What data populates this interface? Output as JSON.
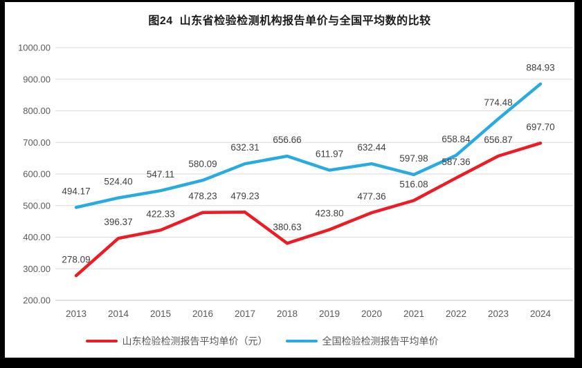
{
  "page": {
    "frame_color": "#000000",
    "background": "#ffffff"
  },
  "chart_data": {
    "type": "line",
    "title": "图24  山东省检验检测机构报告单价与全国平均数的比较",
    "categories": [
      "2013",
      "2014",
      "2015",
      "2016",
      "2017",
      "2018",
      "2019",
      "2020",
      "2021",
      "2022",
      "2023",
      "2024"
    ],
    "series": [
      {
        "name": "山东检验检测报告平均单价（元）",
        "color": "#ed1c24",
        "values": [
          278.09,
          396.37,
          422.33,
          478.23,
          479.23,
          380.63,
          423.8,
          477.36,
          516.08,
          587.36,
          656.87,
          697.7
        ]
      },
      {
        "name": "全国检验检测报告平均单价",
        "color": "#29abe2",
        "values": [
          494.17,
          524.4,
          547.11,
          580.09,
          632.31,
          656.66,
          611.97,
          632.44,
          597.98,
          658.84,
          774.48,
          884.93
        ]
      }
    ],
    "ylim": [
      200,
      1000
    ],
    "ytick_labels": [
      "1000.00",
      "900.00",
      "800.00",
      "700.00",
      "600.00",
      "500.00",
      "400.00",
      "300.00",
      "200.00"
    ],
    "value_decimals": 2,
    "grid": true,
    "data_labels": true,
    "legend_position": "bottom",
    "colors": {
      "grid": "#d9d9d9",
      "baseline": "#bfbfbf",
      "axis_text": "#595959",
      "data_label_text": "#404040",
      "title_text": "#1a1a1a"
    }
  }
}
